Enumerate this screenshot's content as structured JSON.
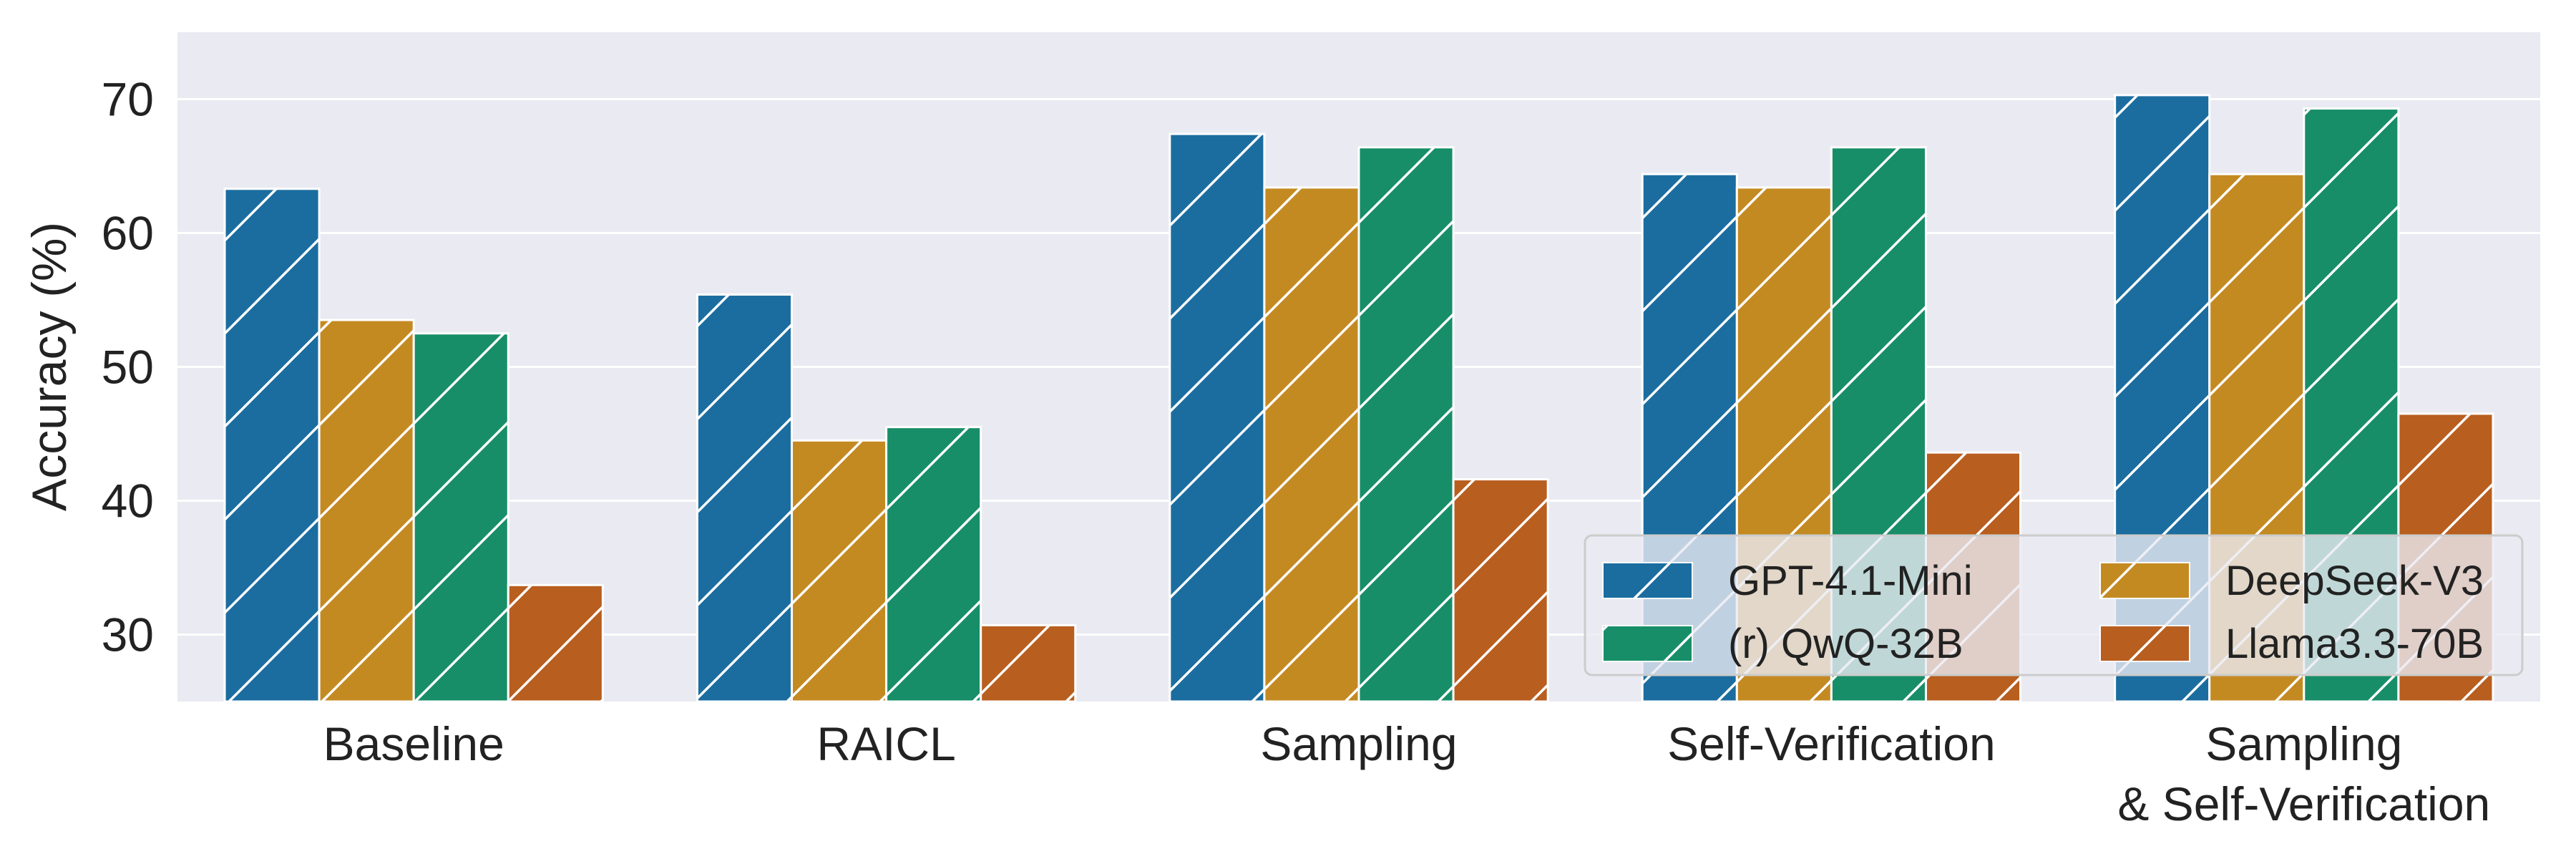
{
  "chart_data": {
    "type": "bar",
    "title": "",
    "xlabel": "",
    "ylabel": "Accuracy (%)",
    "ylim": [
      25,
      75
    ],
    "yticks": [
      30,
      40,
      50,
      60,
      70
    ],
    "grid": true,
    "categories": [
      "Baseline",
      "RAICL",
      "Sampling",
      "Self-Verification",
      "Sampling\n& Self-Verification"
    ],
    "series": [
      {
        "name": "GPT-4.1-Mini",
        "color": "#1b6d9f",
        "values": [
          63.3,
          55.4,
          67.4,
          64.4,
          70.3
        ]
      },
      {
        "name": "DeepSeek-V3",
        "color": "#c48a22",
        "values": [
          53.5,
          44.5,
          63.4,
          63.4,
          64.4
        ]
      },
      {
        "name": "(r) QwQ-32B",
        "color": "#178e68",
        "values": [
          52.5,
          45.5,
          66.4,
          66.4,
          69.3
        ]
      },
      {
        "name": "Llama3.3-70B",
        "color": "#b85e1f",
        "values": [
          33.7,
          30.7,
          41.6,
          43.6,
          46.5
        ]
      }
    ],
    "legend": {
      "position": "lower-right",
      "columns": 2
    },
    "hatch": "diagonal"
  }
}
